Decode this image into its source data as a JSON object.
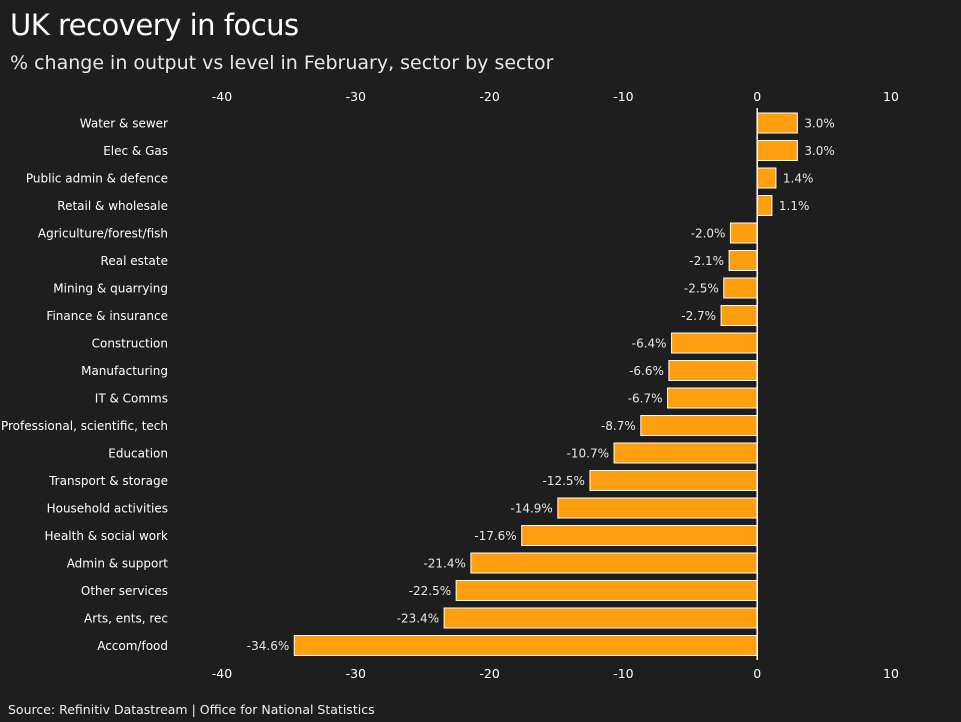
{
  "title": "UK recovery in focus",
  "subtitle": "% change in output vs level in February, sector by sector",
  "source": "Source: Refinitiv Datastream | Office for National Statistics",
  "colors": {
    "bar": "#ff9e0f",
    "background": "#1e1e1e",
    "axis": "#ffffff"
  },
  "chart_data": {
    "type": "bar",
    "orientation": "horizontal",
    "title": "UK recovery in focus",
    "subtitle": "% change in output vs level in February, sector by sector",
    "xlabel": "",
    "ylabel": "",
    "xlim": [
      -40,
      10
    ],
    "xticks": [
      -40,
      -30,
      -20,
      -10,
      0,
      10
    ],
    "xtick_labels": [
      "-40",
      "-30",
      "-20",
      "-10",
      "0",
      "10"
    ],
    "grid": false,
    "categories": [
      "Water & sewer",
      "Elec & Gas",
      "Public admin & defence",
      "Retail & wholesale",
      "Agriculture/forest/fish",
      "Real estate",
      "Mining & quarrying",
      "Finance & insurance",
      "Construction",
      "Manufacturing",
      "IT & Comms",
      "Professional, scientific, tech",
      "Education",
      "Transport & storage",
      "Household activities",
      "Health & social work",
      "Admin & support",
      "Other services",
      "Arts, ents, rec",
      "Accom/food"
    ],
    "values": [
      3.0,
      3.0,
      1.4,
      1.1,
      -2.0,
      -2.1,
      -2.5,
      -2.7,
      -6.4,
      -6.6,
      -6.7,
      -8.7,
      -10.7,
      -12.5,
      -14.9,
      -17.6,
      -21.4,
      -22.5,
      -23.4,
      -34.6
    ],
    "value_labels": [
      "3.0%",
      "3.0%",
      "1.4%",
      "1.1%",
      "-2.0%",
      "-2.1%",
      "-2.5%",
      "-2.7%",
      "-6.4%",
      "-6.6%",
      "-6.7%",
      "-8.7%",
      "-10.7%",
      "-12.5%",
      "-14.9%",
      "-17.6%",
      "-21.4%",
      "-22.5%",
      "-23.4%",
      "-34.6%"
    ]
  }
}
